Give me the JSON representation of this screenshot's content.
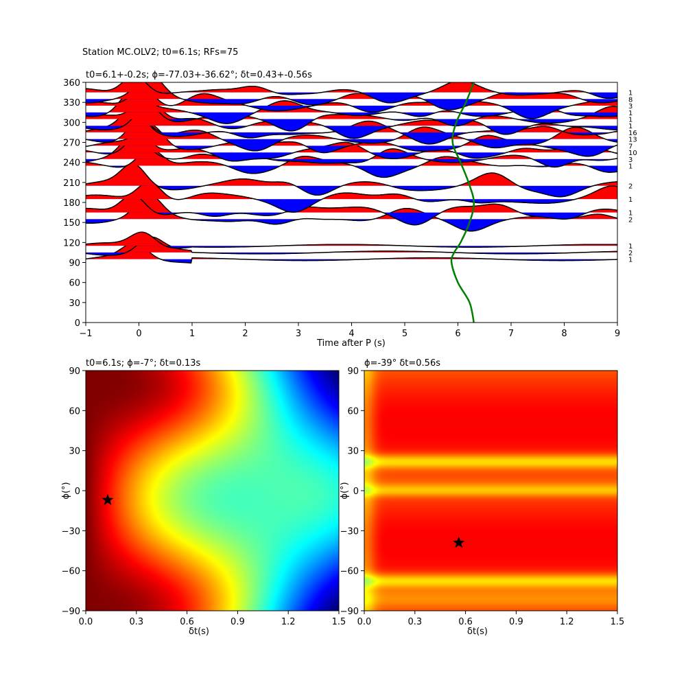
{
  "figure": {
    "suptitle": "Station MC.OLV2; t0=6.1s; RFs=75"
  },
  "colors": {
    "positive_fill": "#ff0000",
    "negative_fill": "#0000ff",
    "trace_line": "#000000",
    "curve": "#008000",
    "star": "#000000"
  },
  "chart_data": [
    {
      "type": "line",
      "panel": "receiver-function-gather",
      "title": "t0=6.1+-0.2s; ϕ=-77.03+-36.62°; δt=0.43+-0.56s",
      "xlabel": "Time after P (s)",
      "ylabel": "",
      "xlim": [
        -1,
        9
      ],
      "ylim": [
        0,
        360
      ],
      "xticks": [
        "−1",
        "0",
        "1",
        "2",
        "3",
        "4",
        "5",
        "6",
        "7",
        "8",
        "9"
      ],
      "yticks": [
        "0",
        "30",
        "60",
        "90",
        "120",
        "150",
        "180",
        "210",
        "240",
        "270",
        "300",
        "330",
        "360"
      ],
      "traces": [
        {
          "baz": 95,
          "count": "1"
        },
        {
          "baz": 105,
          "count": "2"
        },
        {
          "baz": 115,
          "count": "1"
        },
        {
          "baz": 155,
          "count": "2"
        },
        {
          "baz": 165,
          "count": "1"
        },
        {
          "baz": 185,
          "count": "1"
        },
        {
          "baz": 205,
          "count": "2"
        },
        {
          "baz": 235,
          "count": "1"
        },
        {
          "baz": 245,
          "count": "3"
        },
        {
          "baz": 255,
          "count": "10"
        },
        {
          "baz": 265,
          "count": "7"
        },
        {
          "baz": 275,
          "count": "13"
        },
        {
          "baz": 285,
          "count": "16"
        },
        {
          "baz": 295,
          "count": "1"
        },
        {
          "baz": 305,
          "count": "1"
        },
        {
          "baz": 315,
          "count": "1"
        },
        {
          "baz": 325,
          "count": "3"
        },
        {
          "baz": 335,
          "count": "8"
        },
        {
          "baz": 345,
          "count": "1"
        }
      ],
      "moveout_curve": {
        "baz": [
          0,
          30,
          60,
          90,
          105,
          120,
          150,
          180,
          210,
          240,
          270,
          300,
          330,
          360
        ],
        "time": [
          6.3,
          6.22,
          6.0,
          5.88,
          5.93,
          6.05,
          6.22,
          6.3,
          6.2,
          6.05,
          5.9,
          5.97,
          6.15,
          6.3
        ]
      }
    },
    {
      "type": "heatmap",
      "panel": "misfit-map-left",
      "title": "t0=6.1s; ϕ=-7°; δt=0.13s",
      "xlabel": "δt(s)",
      "ylabel": "ϕ(°)",
      "xlim": [
        0,
        1.5
      ],
      "ylim": [
        -90,
        90
      ],
      "xticks": [
        "0.0",
        "0.3",
        "0.6",
        "0.9",
        "1.2",
        "1.5"
      ],
      "yticks": [
        "−90",
        "−60",
        "−30",
        "0",
        "30",
        "60",
        "90"
      ],
      "colormap": "jet",
      "best": {
        "dt": 0.13,
        "phi": -7
      }
    },
    {
      "type": "heatmap",
      "panel": "misfit-map-right",
      "title": "ϕ=-39° δt=0.56s",
      "xlabel": "δt(s)",
      "ylabel": "ϕ(°)",
      "xlim": [
        0,
        1.5
      ],
      "ylim": [
        -90,
        90
      ],
      "xticks": [
        "0.0",
        "0.3",
        "0.6",
        "0.9",
        "1.2",
        "1.5"
      ],
      "yticks": [
        "−90",
        "−60",
        "−30",
        "0",
        "30",
        "60",
        "90"
      ],
      "colormap": "jet",
      "best": {
        "dt": 0.56,
        "phi": -39
      }
    }
  ]
}
